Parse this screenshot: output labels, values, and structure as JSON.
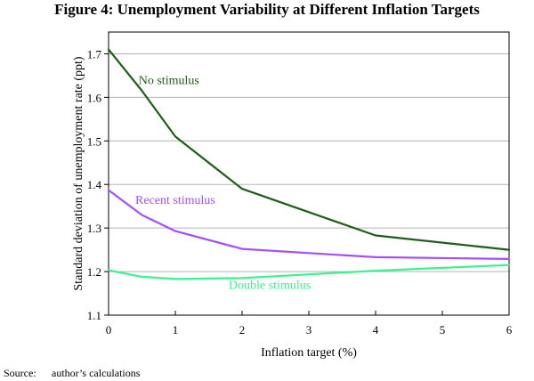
{
  "page": {
    "source_label": "Source:",
    "source_text": "author’s calculations"
  },
  "chart_data": {
    "type": "line",
    "title": "Figure 4: Unemployment Variability at Different Inflation Targets",
    "xlabel": "Inflation target (%)",
    "ylabel": "Standard deviation of unemployment rate (ppt)",
    "xlim": [
      0,
      6
    ],
    "ylim": [
      1.1,
      1.75
    ],
    "xticks": [
      0,
      1,
      2,
      3,
      4,
      5,
      6
    ],
    "yticks": [
      1.1,
      1.2,
      1.3,
      1.4,
      1.5,
      1.6,
      1.7
    ],
    "grid": true,
    "series": [
      {
        "name": "No stimulus",
        "color": "#1f5e1a",
        "x": [
          0,
          0.5,
          1,
          2,
          4,
          6
        ],
        "values": [
          1.71,
          1.615,
          1.51,
          1.39,
          1.283,
          1.25
        ]
      },
      {
        "name": "Recent stimulus",
        "color": "#a64dff",
        "x": [
          0,
          0.5,
          1,
          2,
          4,
          6
        ],
        "values": [
          1.387,
          1.33,
          1.293,
          1.252,
          1.233,
          1.229
        ]
      },
      {
        "name": "Double stimulus",
        "color": "#3bf28f",
        "x": [
          0,
          0.5,
          1,
          2,
          4,
          6
        ],
        "values": [
          1.203,
          1.188,
          1.183,
          1.185,
          1.202,
          1.215
        ]
      }
    ]
  }
}
